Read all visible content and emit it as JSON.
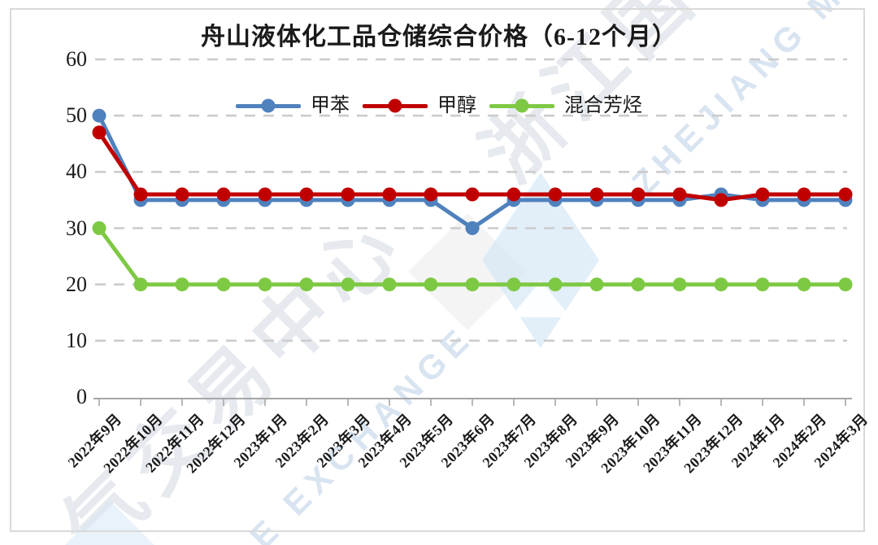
{
  "chart_data": {
    "type": "line",
    "title": "舟山液体化工品仓储综合价格（6-12个月）",
    "categories": [
      "2022年9月",
      "2022年10月",
      "2022年11月",
      "2022年12月",
      "2023年1月",
      "2023年2月",
      "2023年3月",
      "2023年4月",
      "2023年5月",
      "2023年6月",
      "2023年7月",
      "2023年8月",
      "2023年9月",
      "2023年10月",
      "2023年11月",
      "2023年12月",
      "2024年1月",
      "2024年2月",
      "2024年3月"
    ],
    "series": [
      {
        "key": "toluene",
        "name": "甲苯",
        "color": "#4f81bd",
        "values": [
          50,
          35,
          35,
          35,
          35,
          35,
          35,
          35,
          35,
          30,
          35,
          35,
          35,
          35,
          35,
          36,
          35,
          35,
          35
        ]
      },
      {
        "key": "methanol",
        "name": "甲醇",
        "color": "#c00000",
        "values": [
          47,
          36,
          36,
          36,
          36,
          36,
          36,
          36,
          36,
          36,
          36,
          36,
          36,
          36,
          36,
          35,
          36,
          36,
          36
        ]
      },
      {
        "key": "mixed-aromatics",
        "name": "混合芳烃",
        "color": "#7ec944",
        "values": [
          30,
          20,
          20,
          20,
          20,
          20,
          20,
          20,
          20,
          20,
          20,
          20,
          20,
          20,
          20,
          20,
          20,
          20,
          20
        ]
      }
    ],
    "ylim": [
      0,
      60
    ],
    "yticks": [
      0,
      10,
      20,
      30,
      40,
      50,
      60
    ],
    "grid": "horizontal-dashed",
    "legend_position": "top-center"
  },
  "watermark": {
    "cn_top": "浙江国际油气",
    "en_top": "ZHEJIANG MERCA",
    "cn_bottom": "气交易中心",
    "en_bottom": "E EXCHANGE"
  },
  "colors": {
    "grid": "#cccccc",
    "axis": "#a6a6a6",
    "frame": "#d9d9d9",
    "text": "#1a1a1a",
    "watermark_cn": "#e6eaef",
    "watermark_en": "#d9e4f1",
    "logo_blue": "#d3e6f6",
    "logo_gray": "#ececec"
  }
}
